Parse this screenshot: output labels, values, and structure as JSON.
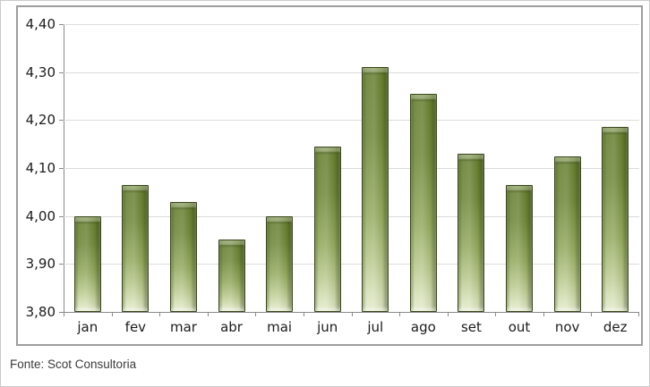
{
  "chart_data": {
    "type": "bar",
    "title": "",
    "xlabel": "",
    "ylabel": "",
    "categories": [
      "jan",
      "fev",
      "mar",
      "abr",
      "mai",
      "jun",
      "jul",
      "ago",
      "set",
      "out",
      "nov",
      "dez"
    ],
    "values": [
      4.0,
      4.065,
      4.03,
      3.95,
      4.0,
      4.145,
      4.31,
      4.255,
      4.13,
      4.065,
      4.125,
      4.185
    ],
    "ylim": [
      3.8,
      4.4
    ],
    "y_tick_step": 0.1,
    "y_tick_labels": [
      "4,40",
      "4,30",
      "4,20",
      "4,10",
      "4,00",
      "3,90",
      "3,80"
    ],
    "grid": true,
    "legend_position": "none",
    "colors": {
      "bar_top": "#647d2e",
      "bar_bottom": "#e3ebcd",
      "bar_border": "#3a471b",
      "gridline": "#dcdcdc",
      "axis": "#8a8a8a",
      "frame_border": "#9e9e9e",
      "label_text": "#1c1c1c"
    }
  },
  "footer": {
    "source": "Fonte: Scot Consultoria"
  }
}
